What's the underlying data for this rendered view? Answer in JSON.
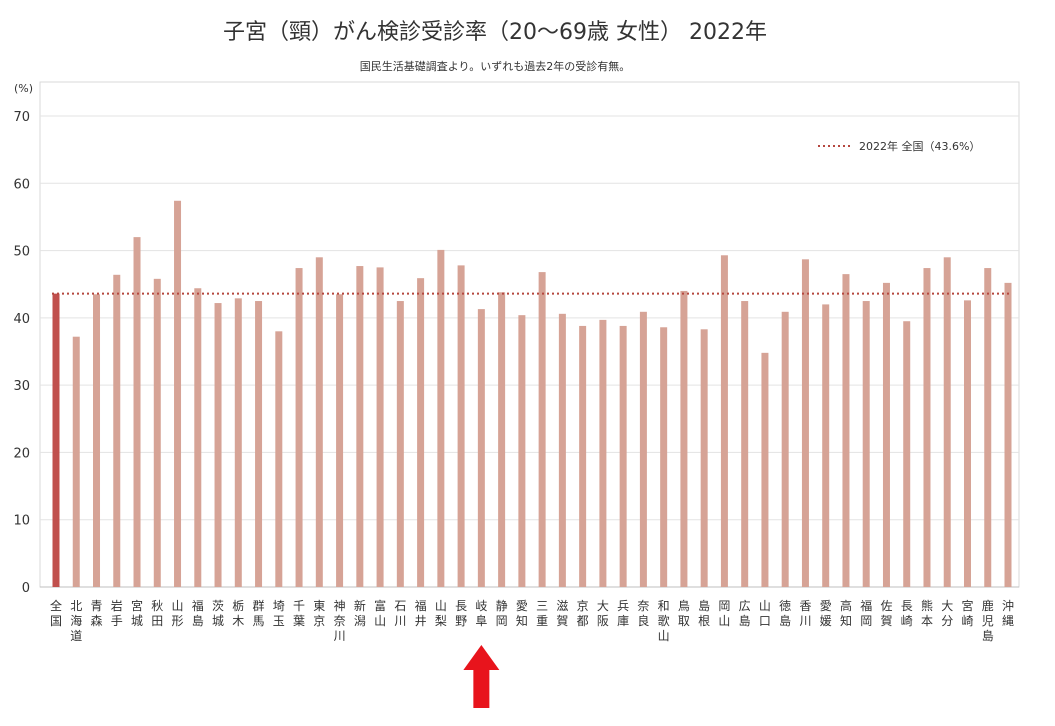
{
  "chart_data": {
    "type": "bar",
    "title": "子宮（頸）がん検診受診率（20〜69歳 女性） 2022年",
    "subtitle": "国民生活基礎調査より。いずれも過去2年の受診有無。",
    "ylabel": "(%)",
    "ylim": [
      0,
      70
    ],
    "yticks": [
      0,
      10,
      20,
      30,
      40,
      50,
      60,
      70
    ],
    "grid": true,
    "legend_position": "top-right",
    "reference_line": {
      "name": "2022年 全国（43.6%）",
      "value": 43.6,
      "style": "dotted",
      "color": "#b5473f"
    },
    "colors": {
      "national_bar": "#c0504d",
      "prefecture_bar": "#d6a396"
    },
    "categories": [
      "全国",
      "北海道",
      "青森",
      "岩手",
      "宮城",
      "秋田",
      "山形",
      "福島",
      "茨城",
      "栃木",
      "群馬",
      "埼玉",
      "千葉",
      "東京",
      "神奈川",
      "新潟",
      "富山",
      "石川",
      "福井",
      "山梨",
      "長野",
      "岐阜",
      "静岡",
      "愛知",
      "三重",
      "滋賀",
      "京都",
      "大阪",
      "兵庫",
      "奈良",
      "和歌山",
      "鳥取",
      "島根",
      "岡山",
      "広島",
      "山口",
      "徳島",
      "香川",
      "愛媛",
      "高知",
      "福岡",
      "佐賀",
      "長崎",
      "熊本",
      "大分",
      "宮崎",
      "鹿児島",
      "沖縄"
    ],
    "values": [
      43.6,
      37.2,
      43.5,
      46.4,
      52.0,
      45.8,
      57.4,
      44.4,
      42.2,
      42.9,
      42.5,
      38.0,
      47.4,
      49.0,
      43.5,
      47.7,
      47.5,
      42.5,
      45.9,
      50.1,
      47.8,
      41.3,
      43.8,
      40.4,
      46.8,
      40.6,
      38.8,
      39.7,
      38.8,
      40.9,
      38.6,
      44.0,
      38.3,
      49.3,
      42.5,
      34.8,
      40.9,
      48.7,
      42.0,
      46.5,
      42.5,
      45.2,
      39.5,
      47.4,
      49.0,
      42.6,
      47.4,
      45.2
    ],
    "highlight_arrow_category": "岐阜"
  }
}
